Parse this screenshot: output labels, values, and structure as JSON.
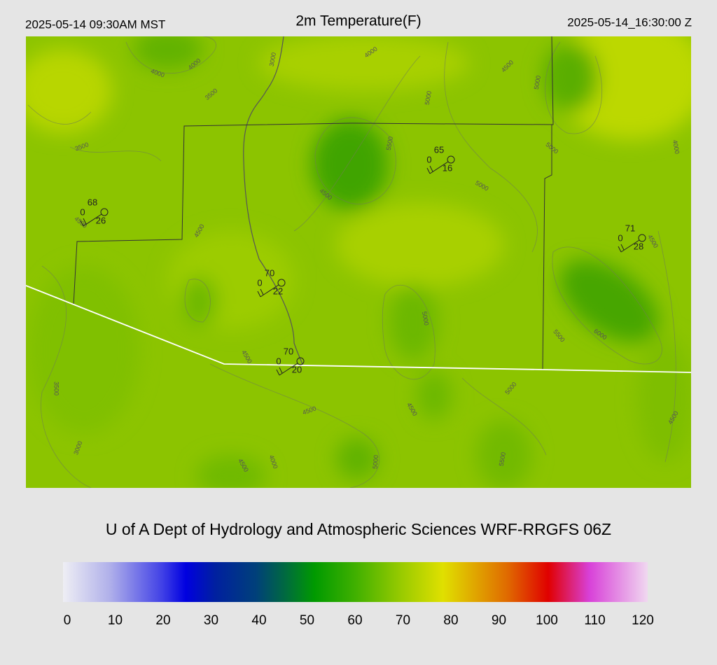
{
  "header": {
    "local_time": "2025-05-14 09:30AM MST",
    "title": "2m Temperature(F)",
    "utc_time": "2025-05-14_16:30:00 Z"
  },
  "stations": [
    {
      "temperature": 68,
      "center": 0,
      "dewpoint": 26
    },
    {
      "temperature": 65,
      "center": 0,
      "dewpoint": 16
    },
    {
      "temperature": 70,
      "center": 0,
      "dewpoint": 22
    },
    {
      "temperature": 70,
      "center": 0,
      "dewpoint": 20
    },
    {
      "temperature": 71,
      "center": 0,
      "dewpoint": 28
    }
  ],
  "contour_labels": [
    4000,
    4000,
    3000,
    4000,
    4500,
    5000,
    5000,
    3500,
    3500,
    5500,
    5000,
    4000,
    4500,
    5000,
    4500,
    4500,
    4500,
    5500,
    6000,
    5000,
    4500,
    3500,
    5000,
    4500,
    4500,
    4500,
    3000,
    4000,
    4500,
    5000,
    5500
  ],
  "footer": "U of A Dept of Hydrology and Atmospheric Sciences WRF-RRGFS 06Z",
  "colorbar": {
    "ticks": [
      0,
      10,
      20,
      30,
      40,
      50,
      60,
      70,
      80,
      90,
      100,
      110,
      120
    ]
  }
}
